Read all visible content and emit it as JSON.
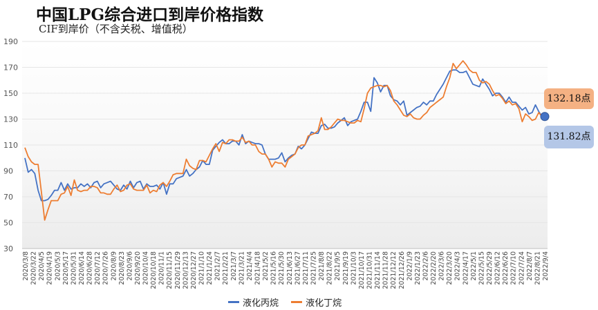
{
  "title": "中国LPG综合进口到岸价格指数",
  "subtitle": "CIF到岸价（不含关税、增值税）",
  "callouts": {
    "butane": "132.18点",
    "propane": "131.82点"
  },
  "colors": {
    "propane": "#4472c4",
    "butane": "#ed7d31",
    "grid": "#e6e6e6",
    "callout_top_bg": "#f4b183",
    "callout_bottom_bg": "#b4c7e7"
  },
  "chart_data": {
    "type": "line",
    "y_ticks": [
      190,
      170,
      150,
      130,
      110,
      90,
      70,
      50,
      30
    ],
    "ylim": [
      30,
      190
    ],
    "grid": true,
    "legend_position": "bottom",
    "x_labels": [
      "2020/3/8",
      "2020/3/22",
      "2020/4/5",
      "2020/4/19",
      "2020/5/3",
      "2020/5/17",
      "2020/5/31",
      "2020/6/14",
      "2020/6/28",
      "2020/7/12",
      "2020/7/26",
      "2020/8/9",
      "2020/8/23",
      "2020/9/6",
      "2020/9/20",
      "2020/10/4",
      "2020/10/18",
      "2020/11/1",
      "2020/11/15",
      "2020/11/29",
      "2020/12/13",
      "2020/12/27",
      "2021/1/10",
      "2021/1/24",
      "2021/2/7",
      "2021/2/21",
      "2021/3/7",
      "2021/3/21",
      "2021/4/4",
      "2021/4/18",
      "2021/5/2",
      "2021/5/16",
      "2021/5/30",
      "2021/6/13",
      "2021/6/27",
      "2021/7/11",
      "2021/7/25",
      "2021/8/8",
      "2021/8/22",
      "2021/9/5",
      "2021/9/19",
      "2021/10/3",
      "2021/10/17",
      "2021/10/31",
      "2021/11/14",
      "2021/11/28",
      "2021/12/12",
      "2021/12/26",
      "2022/1/9",
      "2022/1/23",
      "2022/2/6",
      "2022/2/20",
      "2022/3/6",
      "2022/3/20",
      "2022/4/3",
      "2022/4/17",
      "2022/5/1",
      "2022/5/15",
      "2022/5/29",
      "2022/6/12",
      "2022/6/26",
      "2022/7/10",
      "2022/7/24",
      "2022/8/7",
      "2022/8/21",
      "2022/9/4"
    ],
    "series": [
      {
        "name": "液化丙烷",
        "color": "#4472c4",
        "values": [
          100,
          89,
          91,
          88,
          75,
          67,
          67,
          68,
          71,
          75,
          75,
          81,
          75,
          80,
          76,
          77,
          77,
          80,
          78,
          80,
          77,
          81,
          82,
          77,
          80,
          81,
          82,
          79,
          76,
          75,
          79,
          76,
          82,
          77,
          81,
          82,
          76,
          80,
          78,
          78,
          79,
          76,
          81,
          72,
          80,
          80,
          84,
          85,
          86,
          91,
          86,
          88,
          91,
          93,
          98,
          95,
          95,
          106,
          109,
          112,
          114,
          111,
          111,
          113,
          113,
          110,
          118,
          111,
          113,
          112,
          111,
          111,
          110,
          103,
          99,
          99,
          99,
          100,
          104,
          97,
          100,
          102,
          103,
          109,
          107,
          110,
          115,
          120,
          119,
          119,
          125,
          126,
          123,
          123,
          124,
          127,
          129,
          131,
          125,
          128,
          129,
          130,
          136,
          143,
          143,
          136,
          162,
          158,
          151,
          156,
          156,
          148,
          145,
          144,
          141,
          144,
          133,
          135,
          137,
          139,
          140,
          143,
          141,
          144,
          144,
          149,
          153,
          157,
          162,
          167,
          168,
          168,
          166,
          166,
          167,
          162,
          157,
          156,
          155,
          161,
          157,
          153,
          148,
          150,
          150,
          147,
          143,
          147,
          143,
          143,
          140,
          137,
          139,
          134,
          135,
          141,
          136,
          132
        ]
      },
      {
        "name": "液化丁烷",
        "color": "#ed7d31",
        "values": [
          108,
          101,
          97,
          95,
          95,
          74,
          52,
          60,
          67,
          67,
          67,
          72,
          73,
          78,
          71,
          83,
          75,
          74,
          75,
          75,
          78,
          78,
          77,
          73,
          73,
          72,
          72,
          76,
          79,
          74,
          75,
          79,
          80,
          76,
          75,
          75,
          75,
          79,
          73,
          75,
          74,
          79,
          81,
          78,
          82,
          87,
          88,
          88,
          88,
          99,
          94,
          92,
          91,
          98,
          98,
          97,
          102,
          107,
          111,
          105,
          112,
          111,
          114,
          114,
          113,
          113,
          116,
          112,
          113,
          110,
          110,
          105,
          103,
          103,
          99,
          93,
          97,
          96,
          96,
          93,
          99,
          101,
          103,
          108,
          110,
          110,
          117,
          118,
          119,
          121,
          131,
          122,
          122,
          124,
          127,
          130,
          129,
          129,
          128,
          127,
          127,
          129,
          128,
          138,
          150,
          154,
          155,
          156,
          156,
          155,
          156,
          152,
          144,
          141,
          137,
          133,
          132,
          134,
          131,
          130,
          130,
          133,
          135,
          139,
          141,
          143,
          145,
          147,
          155,
          162,
          173,
          169,
          172,
          175,
          172,
          168,
          166,
          166,
          160,
          158,
          159,
          157,
          152,
          148,
          149,
          146,
          142,
          144,
          141,
          142,
          138,
          128,
          134,
          132,
          129,
          130,
          135,
          132
        ]
      }
    ]
  }
}
